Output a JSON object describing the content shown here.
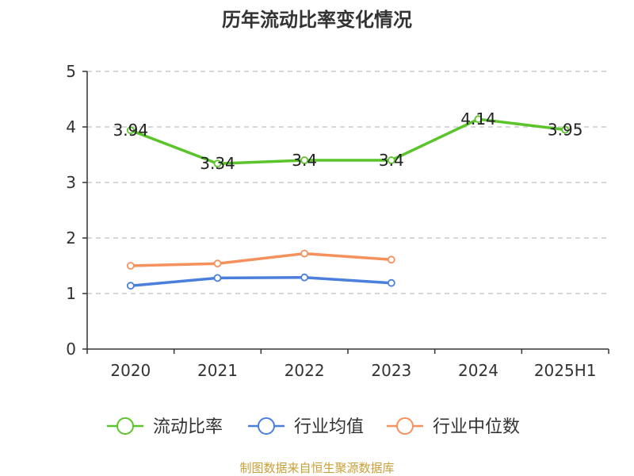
{
  "chart_data": {
    "type": "line",
    "title": "历年流动比率变化情况",
    "categories": [
      "2020",
      "2021",
      "2022",
      "2023",
      "2024",
      "2025H1"
    ],
    "ylim": [
      0,
      5
    ],
    "yticks": [
      "0",
      "1",
      "2",
      "3",
      "4",
      "5"
    ],
    "grid": true,
    "legend_position": "bottom",
    "series": [
      {
        "name": "流动比率",
        "color": "#5cc42b",
        "values": [
          3.94,
          3.34,
          3.4,
          3.4,
          4.14,
          3.95
        ],
        "labels": [
          "3.94",
          "3.34",
          "3.4",
          "3.4",
          "4.14",
          "3.95"
        ]
      },
      {
        "name": "行业均值",
        "color": "#4a7fdb",
        "values": [
          1.14,
          1.28,
          1.29,
          1.19,
          null,
          null
        ]
      },
      {
        "name": "行业中位数",
        "color": "#f5915c",
        "values": [
          1.5,
          1.54,
          1.72,
          1.61,
          null,
          null
        ]
      }
    ]
  },
  "source_note": "制图数据来自恒生聚源数据库"
}
